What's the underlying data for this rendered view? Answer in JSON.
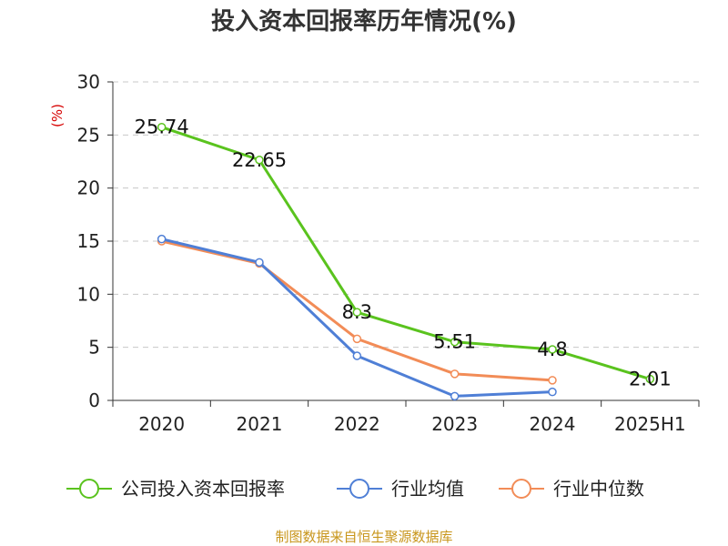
{
  "chart_data": {
    "type": "line",
    "title": "投入资本回报率历年情况(%)",
    "y_unit": "(%)",
    "categories": [
      "2020",
      "2021",
      "2022",
      "2023",
      "2024",
      "2025H1"
    ],
    "ylim": [
      0,
      30
    ],
    "yticks": [
      0,
      5,
      10,
      15,
      20,
      25,
      30
    ],
    "grid": true,
    "legend_position": "bottom",
    "series": [
      {
        "name": "公司投入资本回报率",
        "color": "#5ac31e",
        "values": [
          25.74,
          22.65,
          8.3,
          5.51,
          4.8,
          2.01
        ],
        "labels": [
          "25.74",
          "22.65",
          "8.3",
          "5.51",
          "4.8",
          "2.01"
        ]
      },
      {
        "name": "行业均值",
        "color": "#4f7fd6",
        "values": [
          15.2,
          13.0,
          4.2,
          0.4,
          0.8,
          null
        ]
      },
      {
        "name": "行业中位数",
        "color": "#f28c57",
        "values": [
          15.0,
          12.9,
          5.8,
          2.5,
          1.9,
          null
        ]
      }
    ],
    "source": "制图数据来自恒生聚源数据库"
  }
}
